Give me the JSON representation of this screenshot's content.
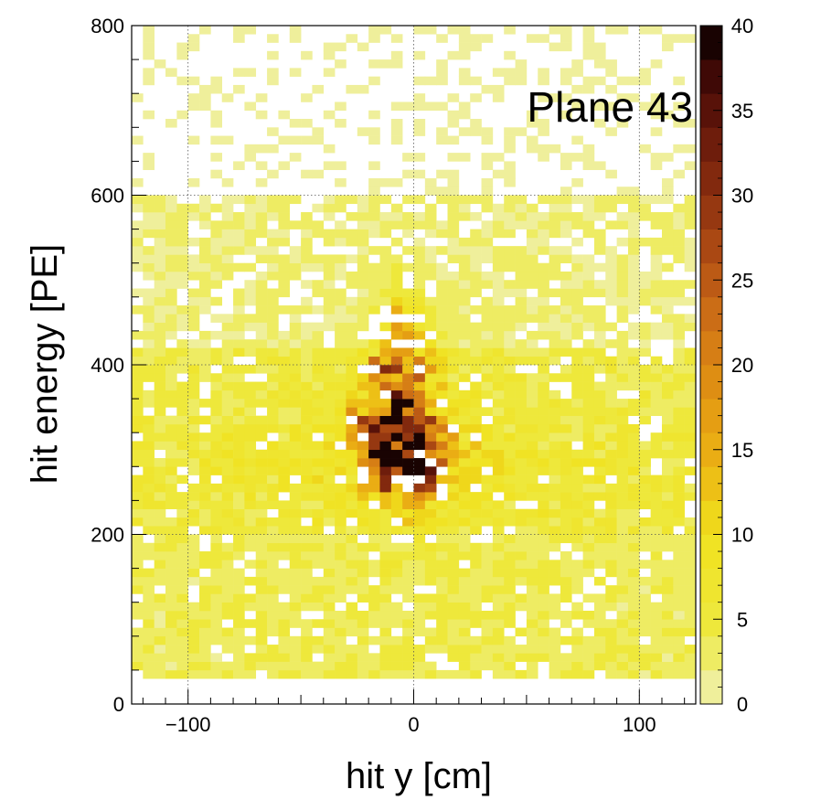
{
  "chart_data": {
    "type": "heatmap",
    "title": "",
    "annotation": "Plane 43",
    "xlabel": "hit y [cm]",
    "ylabel": "hit energy [PE]",
    "xlim": [
      -125,
      125
    ],
    "ylim": [
      0,
      800
    ],
    "x_ticks": [
      -100,
      0,
      100
    ],
    "x_tick_labels": [
      "−100",
      "0",
      "100"
    ],
    "y_ticks": [
      0,
      200,
      400,
      600,
      800
    ],
    "y_tick_labels": [
      "0",
      "200",
      "400",
      "600",
      "800"
    ],
    "colorbar": {
      "min": 0,
      "max": 40,
      "ticks": [
        0,
        5,
        10,
        15,
        20,
        25,
        30,
        35,
        40
      ],
      "tick_labels": [
        "0",
        "5",
        "10",
        "15",
        "20",
        "25",
        "30",
        "35",
        "40"
      ]
    },
    "grid": true,
    "bins": {
      "x_width": 5,
      "y_width": 10,
      "x_start": -125,
      "y_start": 30,
      "y_end": 800
    },
    "peak_cells": [
      {
        "x": -10,
        "y": 290,
        "z": 40
      },
      {
        "x": -10,
        "y": 335,
        "z": 38
      },
      {
        "x": 2.5,
        "y": 275,
        "z": 38
      },
      {
        "x": -5,
        "y": 320,
        "z": 33
      },
      {
        "x": -15,
        "y": 300,
        "z": 32
      },
      {
        "x": -5,
        "y": 360,
        "z": 30
      },
      {
        "x": -20,
        "y": 330,
        "z": 28
      },
      {
        "x": -5,
        "y": 430,
        "z": 28
      },
      {
        "x": -15,
        "y": 400,
        "z": 27
      },
      {
        "x": 0,
        "y": 300,
        "z": 26
      },
      {
        "x": -10,
        "y": 260,
        "z": 26
      },
      {
        "x": 5,
        "y": 260,
        "z": 24
      },
      {
        "x": -25,
        "y": 340,
        "z": 22
      },
      {
        "x": -30,
        "y": 310,
        "z": 18
      },
      {
        "x": 10,
        "y": 290,
        "z": 20
      },
      {
        "x": -5,
        "y": 460,
        "z": 18
      },
      {
        "x": 15,
        "y": 290,
        "z": 14
      }
    ]
  }
}
